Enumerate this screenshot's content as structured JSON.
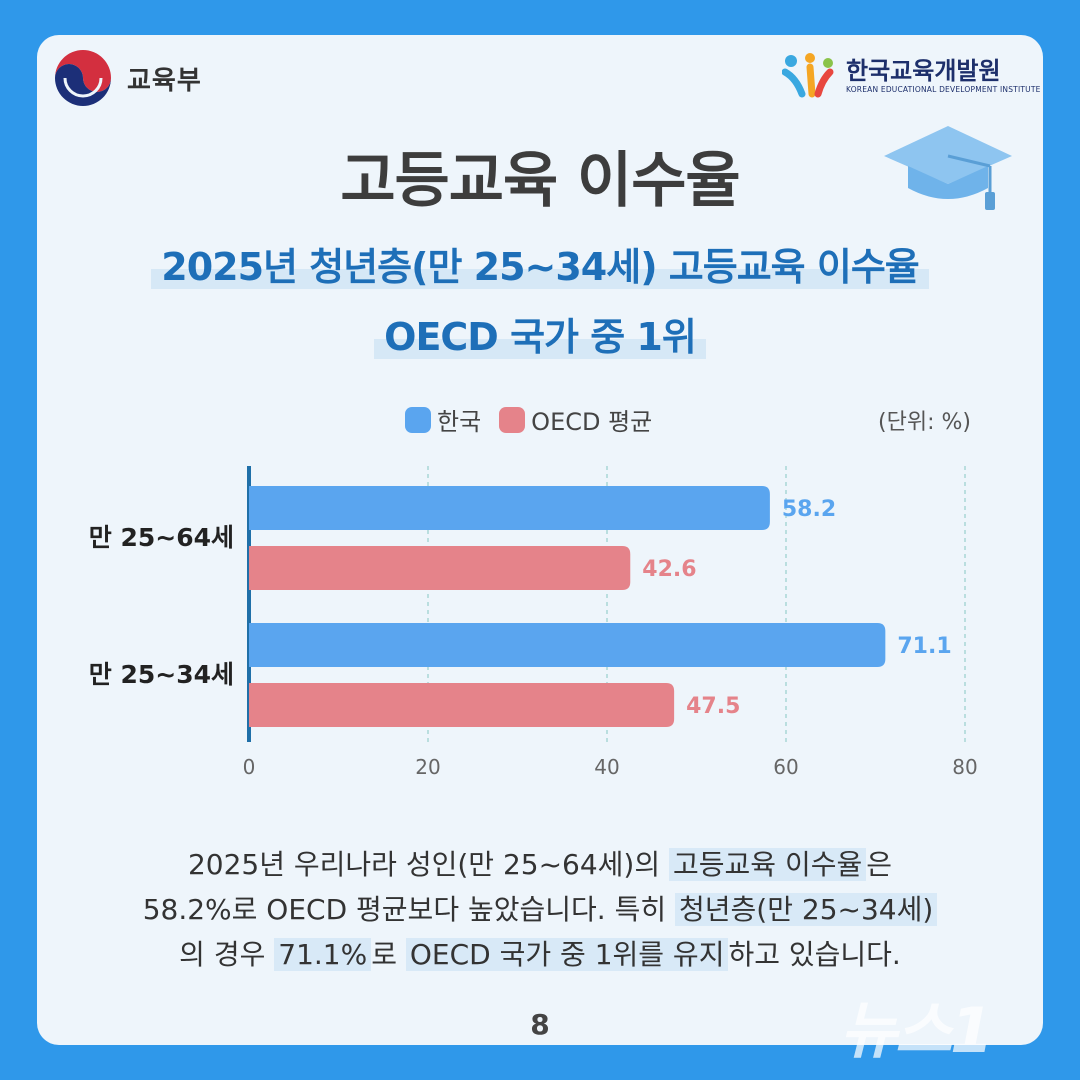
{
  "header": {
    "ministry": "교육부",
    "kedi_ko": "한국교육개발원",
    "kedi_en": "KOREAN EDUCATIONAL DEVELOPMENT INSTITUTE"
  },
  "title": "고등교육 이수율",
  "subtitle": {
    "line1": "2025년 청년층(만 25~34세) 고등교육 이수율",
    "line2": "OECD 국가 중 1위"
  },
  "unit": "(단위: %)",
  "chart_data": {
    "type": "bar",
    "orientation": "horizontal",
    "categories": [
      "만 25~64세",
      "만 25~34세"
    ],
    "series": [
      {
        "name": "한국",
        "values": [
          58.2,
          71.1
        ],
        "color": "#5aa5ef",
        "label_color": "#5aa5ef"
      },
      {
        "name": "OECD 평균",
        "values": [
          42.6,
          47.5
        ],
        "color": "#e5838a",
        "label_color": "#e5838a"
      }
    ],
    "xlim": [
      0,
      80
    ],
    "xticks": [
      0,
      20,
      40,
      60,
      80
    ],
    "grid": true,
    "legend": "top"
  },
  "description": {
    "l1_a": "2025년 우리나라 성인(만 25~64세)의 ",
    "l1_hl": "고등교육 이수율",
    "l1_b": "은",
    "l2_a": "58.2%로 OECD 평균보다 높았습니다. 특히 ",
    "l2_hl": "청년층(만 25~34세)",
    "l3_a": "의 경우 ",
    "l3_hl1": "71.1%",
    "l3_b": "로 ",
    "l3_hl2": "OECD 국가 중 1위를 유지",
    "l3_c": "하고 있습니다."
  },
  "page_number": "8",
  "watermark": "뉴스1"
}
